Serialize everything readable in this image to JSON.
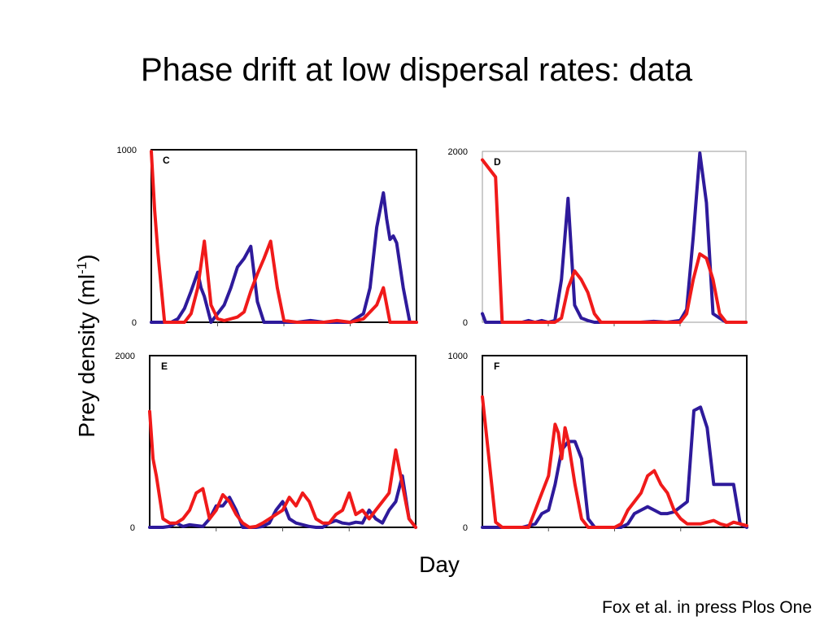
{
  "slide": {
    "title": "Phase drift at low dispersal rates: data",
    "ylabel_main": "Prey density (ml",
    "ylabel_sup": "-1",
    "ylabel_end": ")",
    "xlabel": "Day",
    "citation": "Fox et al. in press Plos One"
  },
  "colors": {
    "blue": "#2e1a9b",
    "red": "#f01a1a"
  },
  "chart_data": [
    {
      "panel": "C",
      "type": "line",
      "ylim": [
        0,
        1000
      ],
      "yticks": [
        "0",
        "1000"
      ],
      "xlim": [
        0,
        40
      ],
      "series": [
        {
          "color": "#2e1a9b",
          "x": [
            0,
            1,
            2,
            3,
            4,
            5,
            6,
            7,
            7.5,
            8,
            9,
            10,
            11,
            12,
            13,
            14,
            15,
            16,
            17,
            18,
            19,
            20,
            22,
            24,
            26,
            28,
            30,
            32,
            33,
            34,
            35,
            35.5,
            36,
            36.5,
            37,
            38,
            39,
            40
          ],
          "y": [
            0,
            0,
            0,
            0,
            20,
            80,
            180,
            290,
            200,
            150,
            0,
            50,
            100,
            200,
            320,
            370,
            440,
            120,
            0,
            0,
            0,
            0,
            0,
            10,
            0,
            0,
            0,
            50,
            200,
            550,
            750,
            600,
            480,
            500,
            460,
            200,
            0,
            0
          ]
        },
        {
          "color": "#f01a1a",
          "x": [
            0,
            0.5,
            1,
            2,
            3,
            4,
            5,
            6,
            7,
            8,
            9,
            10,
            11,
            12,
            13,
            14,
            15,
            16,
            17,
            18,
            19,
            20,
            22,
            24,
            26,
            28,
            30,
            32,
            34,
            35,
            36,
            37,
            38,
            40
          ],
          "y": [
            990,
            650,
            400,
            0,
            0,
            0,
            0,
            50,
            200,
            470,
            100,
            20,
            10,
            20,
            30,
            60,
            180,
            280,
            370,
            470,
            200,
            10,
            0,
            0,
            0,
            10,
            0,
            20,
            100,
            200,
            0,
            0,
            0,
            0
          ]
        }
      ]
    },
    {
      "panel": "D",
      "type": "line",
      "ylim": [
        0,
        2000
      ],
      "yticks": [
        "0",
        "2000"
      ],
      "xlim": [
        0,
        40
      ],
      "series": [
        {
          "color": "#2e1a9b",
          "x": [
            0,
            0.5,
            1,
            2,
            3,
            4,
            5,
            6,
            7,
            8,
            9,
            10,
            11,
            12,
            13,
            14,
            15,
            16,
            17,
            18,
            20,
            22,
            24,
            26,
            28,
            30,
            31,
            32,
            33,
            34,
            35,
            36,
            37,
            38,
            40
          ],
          "y": [
            100,
            0,
            0,
            0,
            0,
            0,
            0,
            0,
            20,
            0,
            20,
            0,
            20,
            500,
            1450,
            200,
            50,
            20,
            0,
            0,
            0,
            0,
            0,
            10,
            0,
            20,
            150,
            1000,
            1980,
            1400,
            100,
            50,
            0,
            0,
            0
          ]
        },
        {
          "color": "#f01a1a",
          "x": [
            0,
            1,
            2,
            3,
            4,
            5,
            6,
            7,
            8,
            9,
            10,
            11,
            12,
            13,
            14,
            15,
            16,
            17,
            18,
            20,
            22,
            24,
            26,
            28,
            30,
            31,
            32,
            33,
            34,
            35,
            36,
            37,
            38,
            40
          ],
          "y": [
            1900,
            1800,
            1700,
            0,
            0,
            0,
            0,
            0,
            0,
            0,
            0,
            0,
            50,
            400,
            600,
            500,
            350,
            100,
            0,
            0,
            0,
            0,
            0,
            0,
            0,
            100,
            500,
            800,
            750,
            500,
            100,
            0,
            0,
            0
          ]
        }
      ]
    },
    {
      "panel": "E",
      "type": "line",
      "ylim": [
        0,
        2000
      ],
      "yticks": [
        "0",
        "2000"
      ],
      "xlim": [
        0,
        40
      ],
      "series": [
        {
          "color": "#2e1a9b",
          "x": [
            0,
            1,
            2,
            3,
            4,
            5,
            6,
            7,
            8,
            9,
            10,
            11,
            12,
            13,
            14,
            15,
            16,
            17,
            18,
            19,
            20,
            21,
            22,
            23,
            24,
            25,
            26,
            27,
            28,
            29,
            30,
            31,
            32,
            33,
            34,
            35,
            36,
            37,
            38,
            39,
            40
          ],
          "y": [
            0,
            0,
            0,
            10,
            50,
            10,
            30,
            20,
            10,
            100,
            250,
            250,
            350,
            200,
            0,
            0,
            0,
            10,
            50,
            200,
            300,
            100,
            50,
            30,
            10,
            0,
            0,
            50,
            80,
            50,
            40,
            60,
            50,
            200,
            100,
            50,
            200,
            300,
            600,
            100,
            0
          ]
        },
        {
          "color": "#f01a1a",
          "x": [
            0,
            0.5,
            1,
            2,
            3,
            4,
            5,
            6,
            7,
            8,
            9,
            10,
            11,
            12,
            13,
            14,
            15,
            16,
            17,
            18,
            19,
            20,
            21,
            22,
            23,
            24,
            25,
            26,
            27,
            28,
            29,
            30,
            31,
            32,
            33,
            34,
            35,
            36,
            37,
            38,
            39,
            40
          ],
          "y": [
            1350,
            800,
            600,
            100,
            50,
            50,
            100,
            200,
            400,
            450,
            100,
            200,
            380,
            300,
            150,
            50,
            0,
            10,
            50,
            100,
            150,
            200,
            350,
            250,
            400,
            300,
            100,
            50,
            50,
            150,
            200,
            400,
            150,
            200,
            100,
            200,
            300,
            400,
            900,
            500,
            100,
            0
          ]
        }
      ]
    },
    {
      "panel": "F",
      "type": "line",
      "ylim": [
        0,
        1000
      ],
      "yticks": [
        "0",
        "1000"
      ],
      "xlim": [
        0,
        40
      ],
      "series": [
        {
          "color": "#2e1a9b",
          "x": [
            0,
            1,
            2,
            3,
            4,
            5,
            6,
            7,
            8,
            9,
            10,
            11,
            12,
            13,
            14,
            15,
            16,
            17,
            18,
            19,
            20,
            21,
            22,
            23,
            24,
            25,
            26,
            27,
            28,
            29,
            30,
            31,
            32,
            33,
            34,
            35,
            36,
            37,
            38,
            39,
            40
          ],
          "y": [
            0,
            0,
            0,
            0,
            0,
            0,
            0,
            10,
            20,
            80,
            100,
            250,
            450,
            500,
            500,
            400,
            50,
            0,
            0,
            0,
            0,
            0,
            20,
            80,
            100,
            120,
            100,
            80,
            80,
            90,
            120,
            150,
            680,
            700,
            580,
            250,
            250,
            250,
            250,
            20,
            0
          ]
        },
        {
          "color": "#f01a1a",
          "x": [
            0,
            1,
            2,
            3,
            4,
            5,
            6,
            7,
            8,
            9,
            10,
            11,
            11.5,
            12,
            12.5,
            13,
            14,
            15,
            16,
            17,
            18,
            19,
            20,
            21,
            22,
            23,
            24,
            25,
            26,
            27,
            28,
            29,
            30,
            31,
            32,
            33,
            34,
            35,
            36,
            37,
            38,
            39,
            40
          ],
          "y": [
            760,
            400,
            30,
            0,
            0,
            0,
            0,
            0,
            100,
            200,
            300,
            600,
            550,
            400,
            580,
            500,
            250,
            50,
            0,
            0,
            0,
            0,
            0,
            20,
            100,
            150,
            200,
            300,
            330,
            250,
            200,
            100,
            50,
            20,
            20,
            20,
            30,
            40,
            20,
            10,
            30,
            20,
            10
          ]
        }
      ]
    }
  ]
}
